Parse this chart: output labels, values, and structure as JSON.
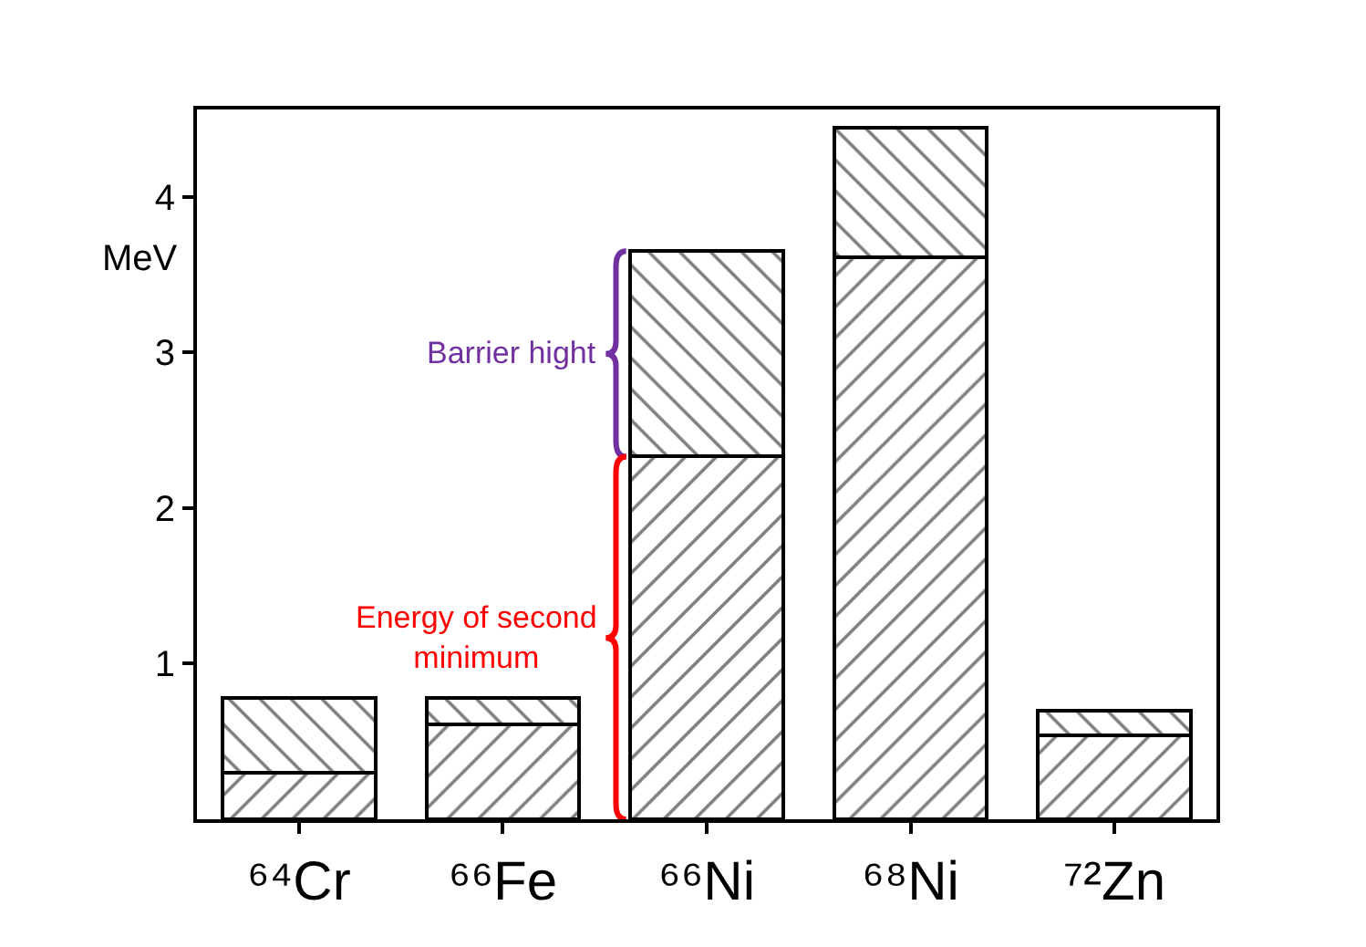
{
  "chart_data": {
    "type": "bar",
    "stacked": true,
    "ylabel": "MeV",
    "categories": [
      "⁶⁴Cr",
      "⁶⁶Fe",
      "⁶⁶Ni",
      "⁶⁸Ni",
      "⁷²Zn"
    ],
    "series": [
      {
        "color": "#000000",
        "values": [
          0.3,
          0.61,
          2.33,
          3.61,
          0.54
        ]
      },
      {
        "color": "#000000",
        "values": [
          0.48,
          0.17,
          1.32,
          0.83,
          0.16
        ]
      }
    ],
    "ylim": [
      0,
      4.56
    ],
    "yticks": [
      1,
      2,
      3,
      4
    ],
    "annotations": [
      "Barrier hight",
      "Energy of second minimum"
    ]
  }
}
